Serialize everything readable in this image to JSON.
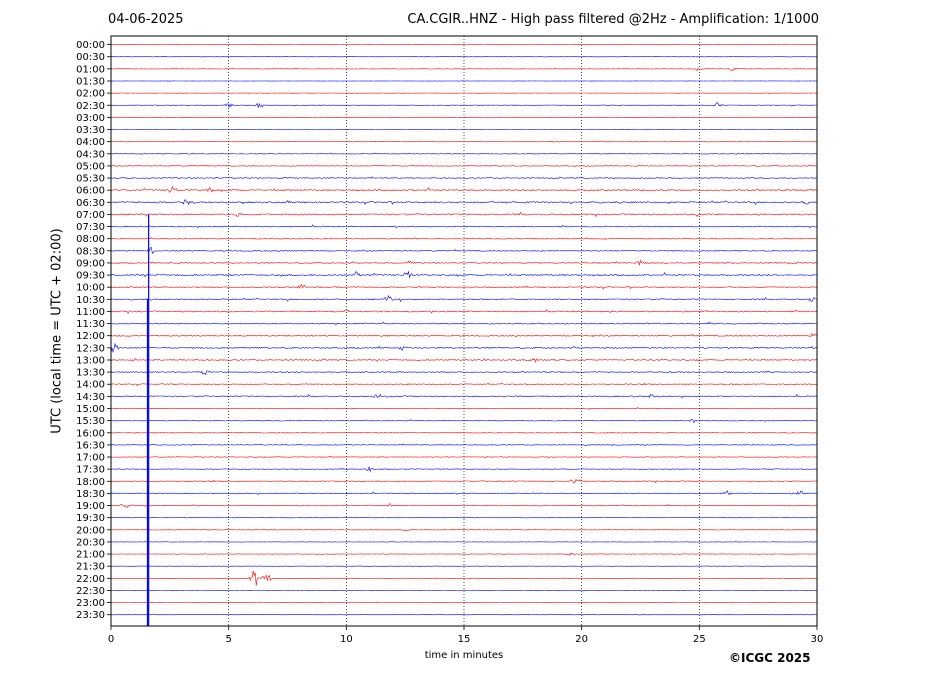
{
  "header": {
    "date": "04-06-2025",
    "title": "CA.CGIR..HNZ - High pass filtered @2Hz - Amplification: 1/1000"
  },
  "footer": {
    "copyright": "©ICGC 2025"
  },
  "chart_data": {
    "type": "line",
    "title": "CA.CGIR..HNZ - High pass filtered @2Hz - Amplification: 1/1000",
    "xlabel": "time in minutes",
    "ylabel": "UTC (local time = UTC + 02:00)",
    "xlim": [
      0,
      30
    ],
    "x_ticks": [
      0,
      5,
      10,
      15,
      20,
      25,
      30
    ],
    "x_gridlines": [
      5,
      10,
      15,
      20,
      25
    ],
    "grid_style": "dotted vertical",
    "row_labels": [
      "00:00",
      "00:30",
      "01:00",
      "01:30",
      "02:00",
      "02:30",
      "03:00",
      "03:30",
      "04:00",
      "04:30",
      "05:00",
      "05:30",
      "06:00",
      "06:30",
      "07:00",
      "07:30",
      "08:00",
      "08:30",
      "09:00",
      "09:30",
      "10:00",
      "10:30",
      "11:00",
      "11:30",
      "12:00",
      "12:30",
      "13:00",
      "13:30",
      "14:00",
      "14:30",
      "15:00",
      "15:30",
      "16:00",
      "16:30",
      "17:00",
      "17:30",
      "18:00",
      "18:30",
      "19:00",
      "19:30",
      "20:00",
      "20:30",
      "21:00",
      "21:30",
      "22:00",
      "22:30",
      "23:00",
      "23:30"
    ],
    "trace_colors": [
      "#ff0000",
      "#0000ff"
    ],
    "noise_level": [
      0.3,
      0.3,
      0.4,
      0.3,
      0.3,
      0.6,
      0.3,
      0.3,
      0.5,
      0.6,
      0.8,
      0.9,
      1.4,
      1.4,
      1.3,
      1.0,
      0.9,
      1.0,
      1.0,
      1.4,
      1.1,
      1.1,
      1.2,
      1.0,
      1.1,
      1.2,
      1.1,
      1.0,
      0.9,
      1.1,
      0.7,
      0.8,
      0.7,
      0.7,
      0.7,
      0.7,
      0.9,
      0.9,
      0.7,
      0.4,
      0.5,
      0.4,
      0.5,
      0.3,
      0.3,
      0.3,
      0.3,
      0.3
    ],
    "events": [
      {
        "row": 2,
        "minute": 24.9,
        "amplitude": 2
      },
      {
        "row": 2,
        "minute": 26.4,
        "amplitude": 2
      },
      {
        "row": 5,
        "minute": 5.0,
        "amplitude": 3
      },
      {
        "row": 5,
        "minute": 6.3,
        "amplitude": 4
      },
      {
        "row": 5,
        "minute": 25.8,
        "amplitude": 3
      },
      {
        "row": 12,
        "minute": 2.6,
        "amplitude": 4
      },
      {
        "row": 12,
        "minute": 4.2,
        "amplitude": 3
      },
      {
        "row": 13,
        "minute": 3.2,
        "amplitude": 3
      },
      {
        "row": 13,
        "minute": 29.5,
        "amplitude": 3
      },
      {
        "row": 14,
        "minute": 5.4,
        "amplitude": 3
      },
      {
        "row": 17,
        "minute": 1.7,
        "amplitude": 4
      },
      {
        "row": 18,
        "minute": 12.7,
        "amplitude": 3
      },
      {
        "row": 18,
        "minute": 22.5,
        "amplitude": 3
      },
      {
        "row": 19,
        "minute": 10.4,
        "amplitude": 4
      },
      {
        "row": 19,
        "minute": 12.6,
        "amplitude": 5
      },
      {
        "row": 20,
        "minute": 8.1,
        "amplitude": 3
      },
      {
        "row": 21,
        "minute": 11.8,
        "amplitude": 4
      },
      {
        "row": 21,
        "minute": 29.8,
        "amplitude": 3
      },
      {
        "row": 22,
        "minute": 10.0,
        "amplitude": 3
      },
      {
        "row": 24,
        "minute": 29.8,
        "amplitude": 4
      },
      {
        "row": 25,
        "minute": 0.1,
        "amplitude": 9
      },
      {
        "row": 25,
        "minute": 12.4,
        "amplitude": 3
      },
      {
        "row": 26,
        "minute": 18.0,
        "amplitude": 3
      },
      {
        "row": 27,
        "minute": 4.0,
        "amplitude": 3
      },
      {
        "row": 29,
        "minute": 11.3,
        "amplitude": 3
      },
      {
        "row": 29,
        "minute": 23.0,
        "amplitude": 3
      },
      {
        "row": 31,
        "minute": 24.7,
        "amplitude": 3
      },
      {
        "row": 35,
        "minute": 11.0,
        "amplitude": 3
      },
      {
        "row": 36,
        "minute": 19.7,
        "amplitude": 3
      },
      {
        "row": 37,
        "minute": 26.2,
        "amplitude": 3
      },
      {
        "row": 37,
        "minute": 29.3,
        "amplitude": 4
      },
      {
        "row": 38,
        "minute": 0.6,
        "amplitude": 4
      },
      {
        "row": 38,
        "minute": 11.8,
        "amplitude": 2
      },
      {
        "row": 40,
        "minute": 12.5,
        "amplitude": 2
      },
      {
        "row": 42,
        "minute": 19.5,
        "amplitude": 2
      },
      {
        "row": 44,
        "minute": 6.1,
        "amplitude": 10
      },
      {
        "row": 44,
        "minute": 6.6,
        "amplitude": 6
      }
    ],
    "long_spike": {
      "minute": 1.6,
      "from_row": 14,
      "to_row": 47
    },
    "secondary_spike": {
      "minute": 1.55,
      "from_row": 21,
      "to_row": 47
    }
  }
}
